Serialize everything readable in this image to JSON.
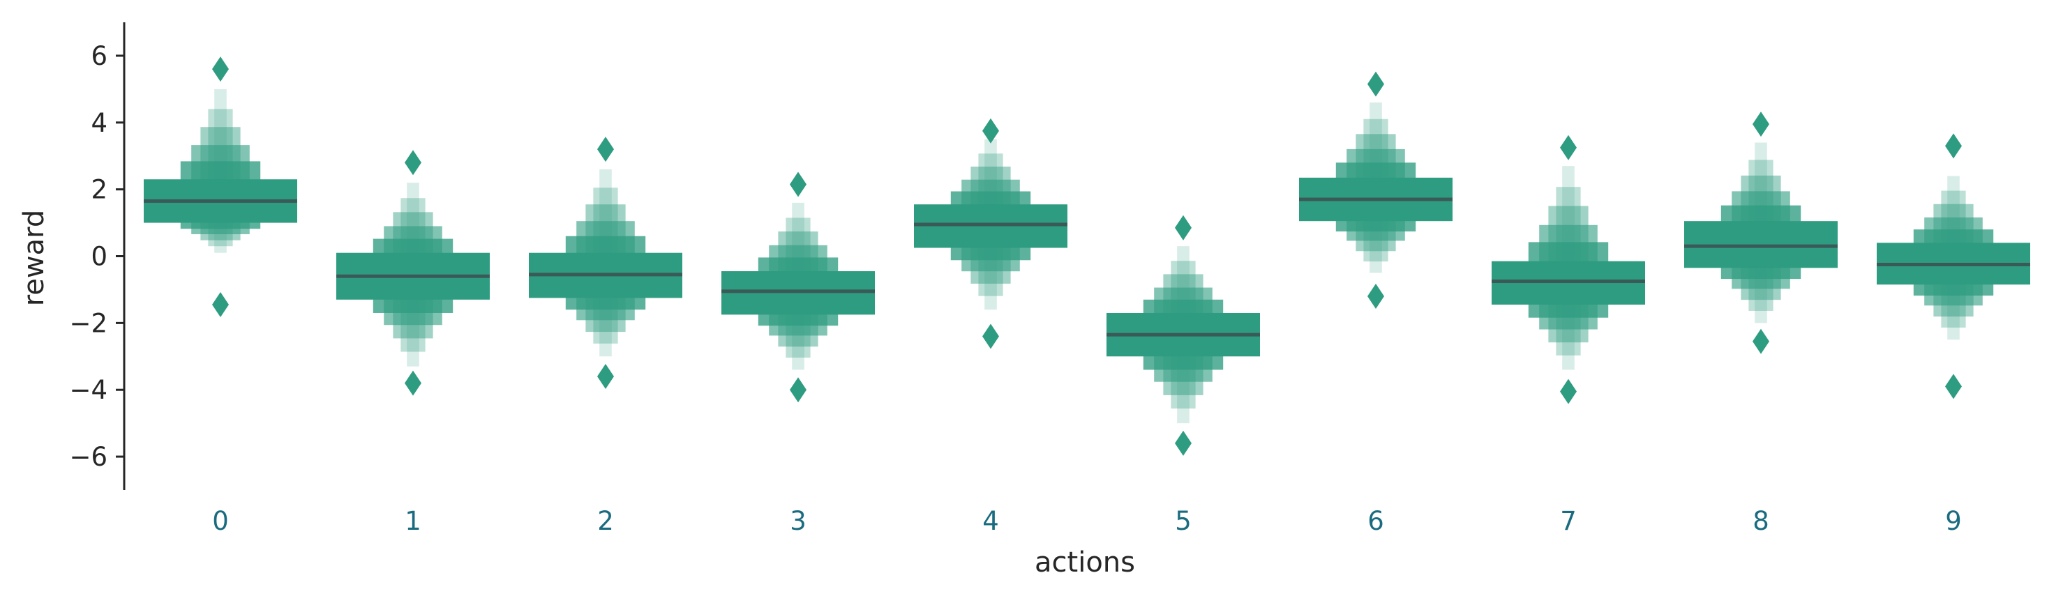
{
  "chart_data": {
    "type": "boxen",
    "xlabel": "actions",
    "ylabel": "reward",
    "categories": [
      "0",
      "1",
      "2",
      "3",
      "4",
      "5",
      "6",
      "7",
      "8",
      "9"
    ],
    "yticks": [
      "6",
      "4",
      "2",
      "0",
      "−2",
      "−4",
      "−6"
    ],
    "ylim": [
      -7,
      7
    ],
    "grid": false,
    "colors": {
      "box": "#2e9c80",
      "median": "#3a5a58",
      "xtick": "#1a6b80",
      "axis": "#262626"
    },
    "boxes": [
      {
        "category": "0",
        "median": 1.65,
        "q1": 1.0,
        "q3": 2.3,
        "min": 0.1,
        "max": 5.0,
        "outliers": [
          5.6,
          -1.45
        ]
      },
      {
        "category": "1",
        "median": -0.6,
        "q1": -1.3,
        "q3": 0.1,
        "min": -3.3,
        "max": 2.2,
        "outliers": [
          2.8,
          -3.8
        ]
      },
      {
        "category": "2",
        "median": -0.55,
        "q1": -1.25,
        "q3": 0.1,
        "min": -3.0,
        "max": 2.6,
        "outliers": [
          3.2,
          -3.6
        ]
      },
      {
        "category": "3",
        "median": -1.05,
        "q1": -1.75,
        "q3": -0.45,
        "min": -3.4,
        "max": 1.6,
        "outliers": [
          2.15,
          -4.0
        ]
      },
      {
        "category": "4",
        "median": 0.95,
        "q1": 0.25,
        "q3": 1.55,
        "min": -1.6,
        "max": 3.5,
        "outliers": [
          3.75,
          -2.4
        ]
      },
      {
        "category": "5",
        "median": -2.35,
        "q1": -3.0,
        "q3": -1.7,
        "min": -5.0,
        "max": 0.3,
        "outliers": [
          0.85,
          -5.6
        ]
      },
      {
        "category": "6",
        "median": 1.7,
        "q1": 1.05,
        "q3": 2.35,
        "min": -0.5,
        "max": 4.6,
        "outliers": [
          5.15,
          -1.2
        ]
      },
      {
        "category": "7",
        "median": -0.75,
        "q1": -1.45,
        "q3": -0.15,
        "min": -3.4,
        "max": 2.7,
        "outliers": [
          3.25,
          -4.05
        ]
      },
      {
        "category": "8",
        "median": 0.3,
        "q1": -0.35,
        "q3": 1.05,
        "min": -2.0,
        "max": 3.4,
        "outliers": [
          3.95,
          -2.55
        ]
      },
      {
        "category": "9",
        "median": -0.25,
        "q1": -0.85,
        "q3": 0.4,
        "min": -2.5,
        "max": 2.4,
        "outliers": [
          3.3,
          -3.9
        ]
      }
    ]
  }
}
